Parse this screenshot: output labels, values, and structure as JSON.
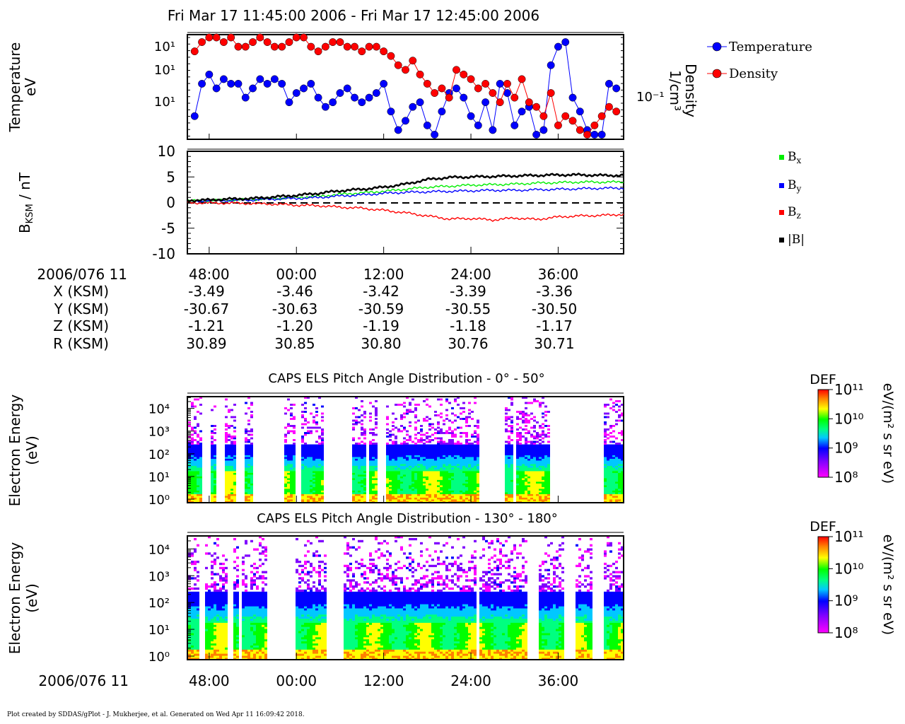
{
  "title": "Fri Mar 17 11:45:00 2006 - Fri Mar 17 12:45:00 2006",
  "footer": "Plot created by SDDAS/gPlot - J. Mukherjee, et al.  Generated on Wed Apr 11 16:09:42 2018.",
  "colors": {
    "temperature": "#0000ff",
    "density": "#ff0000",
    "bx": "#00ee00",
    "by": "#0000ff",
    "bz": "#ff0000",
    "btot": "#000000"
  },
  "chart_data": [
    {
      "type": "scatter",
      "id": "panel-temp-density",
      "ylabel": "Temperature\neV",
      "ylabel_right": "Density\n1/cm3",
      "ytick_labels": [
        "10¹",
        "10¹",
        "10¹"
      ],
      "ytick_right": "10⁻¹",
      "legend": "right",
      "series": [
        {
          "name": "Temperature",
          "marker": "circle",
          "x": [
            46,
            47,
            48,
            49,
            50,
            51,
            52,
            53,
            54,
            55,
            56,
            57,
            58,
            59,
            60,
            61,
            62,
            63,
            64,
            65,
            66,
            67,
            68,
            69,
            70,
            71,
            72,
            73,
            74,
            75,
            76,
            77,
            78,
            79,
            80,
            81,
            82,
            83,
            84,
            85,
            86,
            87,
            88,
            89,
            90,
            91,
            92,
            93,
            94,
            95,
            96,
            97,
            98,
            99,
            100,
            101,
            102,
            103,
            104
          ],
          "y": [
            5,
            12,
            14,
            11,
            13,
            12,
            12,
            9,
            11,
            13,
            12,
            13,
            12,
            8,
            10,
            11,
            12,
            9,
            7,
            8,
            10,
            11,
            9,
            8,
            9,
            10,
            12,
            6,
            2,
            4,
            7,
            8,
            3,
            1,
            6,
            10,
            11,
            9,
            5,
            3,
            8,
            2,
            12,
            10,
            3,
            6,
            7,
            1,
            2,
            16,
            20,
            21,
            9,
            6,
            2,
            1,
            1,
            12,
            11
          ]
        },
        {
          "name": "Density",
          "marker": "circle",
          "x": [
            46,
            47,
            48,
            49,
            50,
            51,
            52,
            53,
            54,
            55,
            56,
            57,
            58,
            59,
            60,
            61,
            62,
            63,
            64,
            65,
            66,
            67,
            68,
            69,
            70,
            71,
            72,
            73,
            74,
            75,
            76,
            77,
            78,
            79,
            80,
            81,
            82,
            83,
            84,
            85,
            86,
            87,
            88,
            89,
            90,
            91,
            92,
            93,
            94,
            95,
            96,
            97,
            98,
            99,
            100,
            101,
            102,
            103,
            104
          ],
          "y": [
            19,
            21,
            22,
            22,
            21,
            22,
            20,
            20,
            21,
            22,
            21,
            20,
            20,
            21,
            22,
            22,
            20,
            19,
            20,
            21,
            21,
            20,
            20,
            19,
            20,
            20,
            19,
            18,
            16,
            15,
            17,
            14,
            12,
            10,
            11,
            9,
            15,
            14,
            13,
            11,
            12,
            10,
            8,
            12,
            9,
            13,
            8,
            7,
            5,
            10,
            3,
            5,
            4,
            2,
            1,
            3,
            5,
            7,
            6
          ]
        }
      ]
    },
    {
      "type": "line",
      "id": "panel-magnetic-field",
      "ylabel": "BKSM / nT",
      "ylim": [
        -10,
        10
      ],
      "yticks": [
        -10,
        -5,
        0,
        5,
        10
      ],
      "ytick_labels": [
        "-10",
        "-5",
        "0",
        "5",
        "10"
      ],
      "legend": "right",
      "x": [
        45,
        48,
        51,
        54,
        57,
        60,
        63,
        66,
        69,
        72,
        75,
        78,
        81,
        84,
        87,
        90,
        93,
        96,
        99,
        102,
        105
      ],
      "series": [
        {
          "name": "Bx",
          "label_main": "B",
          "label_sub": "x",
          "values": [
            0.3,
            0.4,
            0.5,
            0.6,
            0.8,
            1.0,
            1.2,
            1.6,
            1.9,
            2.2,
            2.6,
            3.0,
            3.2,
            3.4,
            3.5,
            3.6,
            3.8,
            3.9,
            4.0,
            4.0,
            4.0
          ]
        },
        {
          "name": "By",
          "label_main": "B",
          "label_sub": "y",
          "values": [
            0.2,
            0.3,
            0.4,
            0.5,
            0.7,
            0.8,
            1.0,
            1.3,
            1.5,
            1.8,
            2.0,
            2.1,
            2.2,
            2.3,
            2.4,
            2.4,
            2.5,
            2.6,
            2.7,
            2.8,
            2.8
          ]
        },
        {
          "name": "Bz",
          "label_main": "B",
          "label_sub": "z",
          "values": [
            0.0,
            -0.1,
            -0.1,
            -0.2,
            -0.3,
            -0.5,
            -0.6,
            -0.9,
            -1.1,
            -1.5,
            -2.0,
            -2.6,
            -3.2,
            -3.1,
            -3.4,
            -3.0,
            -3.3,
            -2.8,
            -2.6,
            -2.5,
            -2.3
          ]
        },
        {
          "name": "|B|",
          "label_main": "|B|",
          "label_sub": "",
          "values": [
            0.4,
            0.5,
            0.7,
            0.8,
            1.1,
            1.4,
            1.8,
            2.3,
            2.6,
            3.0,
            3.6,
            4.5,
            4.9,
            5.0,
            5.1,
            5.2,
            5.3,
            5.4,
            5.4,
            5.3,
            5.3
          ]
        }
      ]
    },
    {
      "type": "heatmap",
      "id": "panel-els-0-50",
      "title": "CAPS ELS Pitch Angle Distribution - 0° - 50°",
      "ylabel": "Electron Energy\n(eV)",
      "ytick_labels": [
        "10⁰",
        "10¹",
        "10²",
        "10³",
        "10⁴"
      ],
      "colorbar": {
        "title": "DEF",
        "units": "eV/(m² s sr eV)",
        "tick_labels": [
          "10⁸",
          "10⁹",
          "10¹⁰",
          "10¹¹"
        ]
      },
      "data_gaps_min": [
        [
          47.0,
          48.0
        ],
        [
          48.7,
          50.0
        ],
        [
          51.5,
          52.5
        ],
        [
          54.0,
          58.0
        ],
        [
          59.5,
          60.5
        ],
        [
          63.5,
          67.5
        ],
        [
          69.5,
          69.8
        ],
        [
          70.8,
          72.0
        ],
        [
          85.0,
          88.5
        ],
        [
          89.6,
          89.9
        ],
        [
          94.5,
          102.0
        ]
      ]
    },
    {
      "type": "heatmap",
      "id": "panel-els-130-180",
      "title": "CAPS ELS Pitch Angle Distribution - 130° - 180°",
      "ylabel": "Electron Energy\n(eV)",
      "ytick_labels": [
        "10⁰",
        "10¹",
        "10²",
        "10³",
        "10⁴"
      ],
      "colorbar": {
        "title": "DEF",
        "units": "eV/(m² s sr eV)",
        "tick_labels": [
          "10⁸",
          "10⁹",
          "10¹⁰",
          "10¹¹"
        ]
      },
      "data_gaps_min": [
        [
          46.4,
          47.3
        ],
        [
          50.5,
          51.3
        ],
        [
          51.8,
          52.4
        ],
        [
          55.8,
          59.7
        ],
        [
          63.9,
          66.4
        ],
        [
          84.7,
          84.9
        ],
        [
          91.7,
          93.0
        ],
        [
          96.8,
          98.3
        ],
        [
          100.5,
          102.0
        ]
      ]
    }
  ],
  "time_axis": {
    "start_label": "2006/076 11",
    "ticks": [
      "48:00",
      "00:00",
      "12:00",
      "24:00",
      "36:00"
    ]
  },
  "ephemeris": {
    "header": "2006/076 11",
    "rows": [
      {
        "label": "X (KSM)",
        "values": [
          "-3.49",
          "-3.46",
          "-3.42",
          "-3.39",
          "-3.36"
        ]
      },
      {
        "label": "Y (KSM)",
        "values": [
          "-30.67",
          "-30.63",
          "-30.59",
          "-30.55",
          "-30.50"
        ]
      },
      {
        "label": "Z (KSM)",
        "values": [
          "-1.21",
          "-1.20",
          "-1.19",
          "-1.18",
          "-1.17"
        ]
      },
      {
        "label": "R (KSM)",
        "values": [
          "30.89",
          "30.85",
          "30.80",
          "30.76",
          "30.71"
        ]
      }
    ]
  }
}
